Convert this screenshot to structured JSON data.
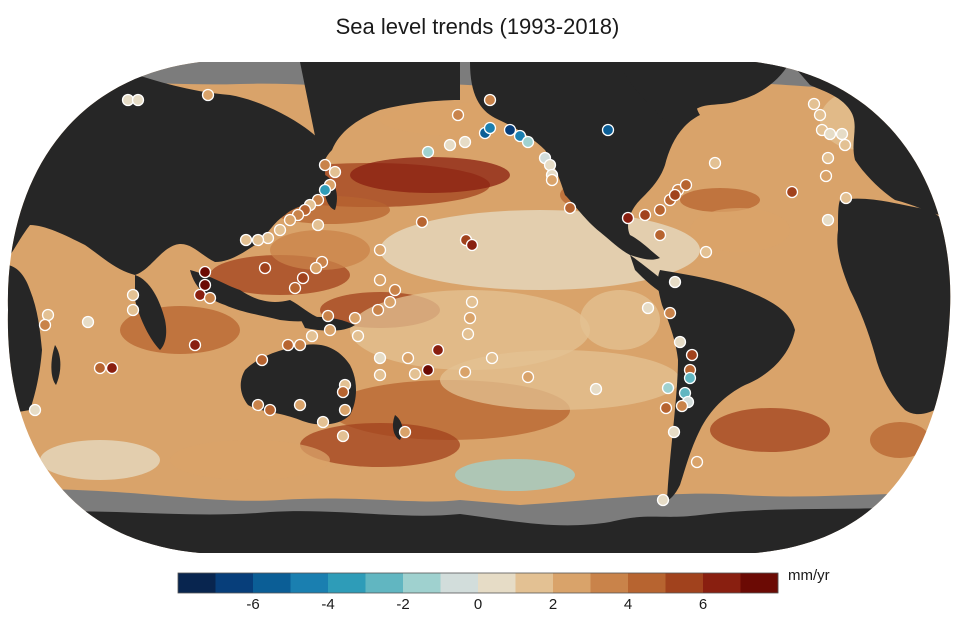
{
  "title": "Sea level trends (1993-2018)",
  "colorbar": {
    "unit": "mm/yr",
    "min": -8,
    "max": 8,
    "step": 1,
    "ticks": [
      {
        "value": -6,
        "label": "-6"
      },
      {
        "value": -4,
        "label": "-4"
      },
      {
        "value": -2,
        "label": "-2"
      },
      {
        "value": 0,
        "label": "0"
      },
      {
        "value": 2,
        "label": "2"
      },
      {
        "value": 4,
        "label": "4"
      },
      {
        "value": 6,
        "label": "6"
      }
    ],
    "colors": [
      "#08254f",
      "#073e7a",
      "#0b5e96",
      "#1a7fb0",
      "#2e9cb8",
      "#61b6c1",
      "#9fd1cf",
      "#d2dddb",
      "#e6dcc6",
      "#e3c193",
      "#d9a36a",
      "#c9834a",
      "#b76430",
      "#a1421d",
      "#891f10",
      "#6b0a04"
    ]
  },
  "map": {
    "ocean_base": "#d9a36a",
    "land": "#262626",
    "ice": "#7c7c7c"
  }
}
